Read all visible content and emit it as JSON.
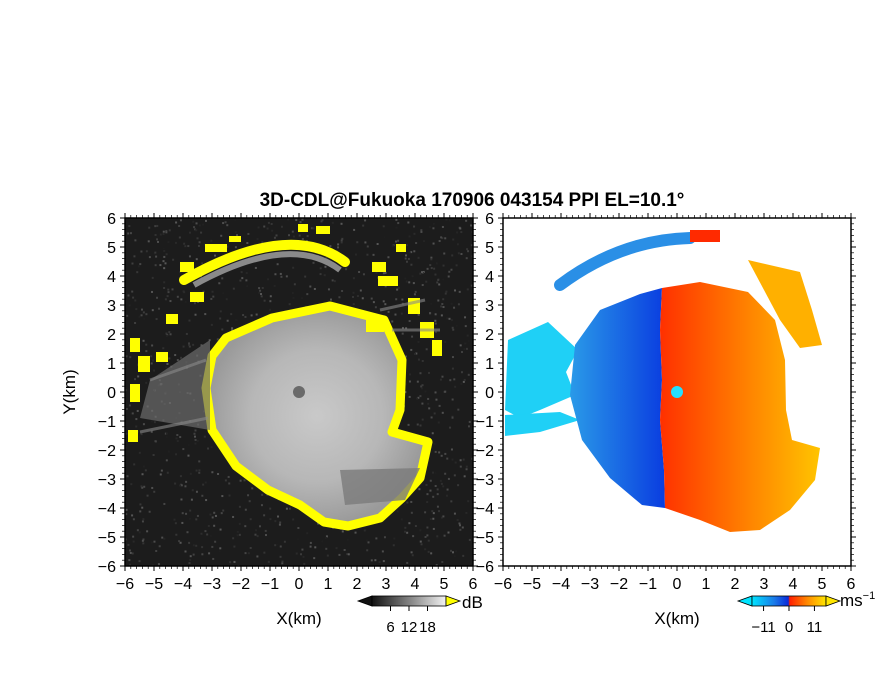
{
  "chart_data": [
    {
      "type": "heatmap",
      "title": "3D-CDL@Fukuoka 170906 043154 PPI EL=10.1°",
      "xlabel": "X(km)",
      "ylabel": "Y(km)",
      "xlim": [
        -6,
        6
      ],
      "ylim": [
        -6,
        6
      ],
      "xticks": [
        "−6",
        "−5",
        "−4",
        "−3",
        "−2",
        "−1",
        "0",
        "1",
        "2",
        "3",
        "4",
        "5",
        "6"
      ],
      "yticks": [
        "6",
        "5",
        "4",
        "3",
        "2",
        "1",
        "0",
        "−1",
        "−2",
        "−3",
        "−4",
        "−5",
        "−6"
      ],
      "colorbar": {
        "unit": "dB",
        "ticks": [
          "6",
          "12",
          "18"
        ],
        "range": [
          0,
          24
        ],
        "palette": "grayscale"
      },
      "saturation_color": "#ffff00",
      "echo_radius_km": 3.5
    },
    {
      "type": "heatmap",
      "xlabel": "X(km)",
      "ylabel": "",
      "xlim": [
        -6,
        6
      ],
      "ylim": [
        -6,
        6
      ],
      "xticks": [
        "−6",
        "−5",
        "−4",
        "−3",
        "−2",
        "−1",
        "0",
        "1",
        "2",
        "3",
        "4",
        "5",
        "6"
      ],
      "yticks": [
        "6",
        "5",
        "4",
        "3",
        "2",
        "1",
        "0",
        "−1",
        "−2",
        "−3",
        "−4",
        "−5",
        "−6"
      ],
      "colorbar": {
        "unit": "ms",
        "unit_exponent": "−1",
        "ticks": [
          "−11",
          "0",
          "11"
        ],
        "range": [
          -16,
          16
        ],
        "palette": "blue-cyan-red-yellow"
      },
      "velocity_sign": "negative west (blue), positive east (red/orange)"
    }
  ]
}
